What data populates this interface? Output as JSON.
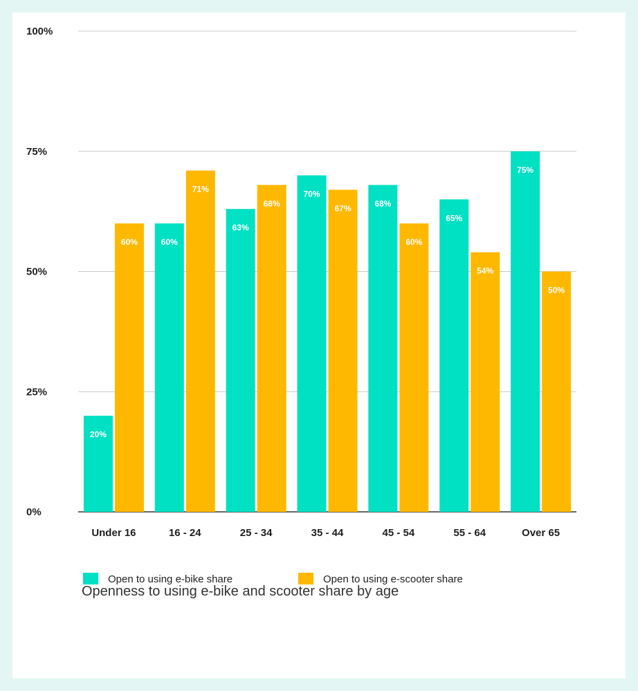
{
  "chart_data": {
    "type": "bar",
    "categories": [
      "Under 16",
      "16 - 24",
      "25 - 34",
      "35 - 44",
      "45 - 54",
      "55 - 64",
      "Over 65"
    ],
    "series": [
      {
        "name": "Open to using e-bike share",
        "color": "#00e0c2",
        "values": [
          20,
          60,
          63,
          70,
          68,
          65,
          75
        ]
      },
      {
        "name": "Open to using e-scooter share",
        "color": "#ffb800",
        "values": [
          60,
          71,
          68,
          67,
          60,
          54,
          50
        ]
      }
    ],
    "ylim": [
      0,
      100
    ],
    "yticks": [
      0,
      25,
      50,
      75,
      100
    ],
    "ytick_labels": [
      "0%",
      "25%",
      "50%",
      "75%",
      "100%"
    ],
    "value_suffix": "%",
    "grid": true,
    "legend_position": "bottom",
    "caption": "Openness to using e-bike and scooter share by age"
  }
}
